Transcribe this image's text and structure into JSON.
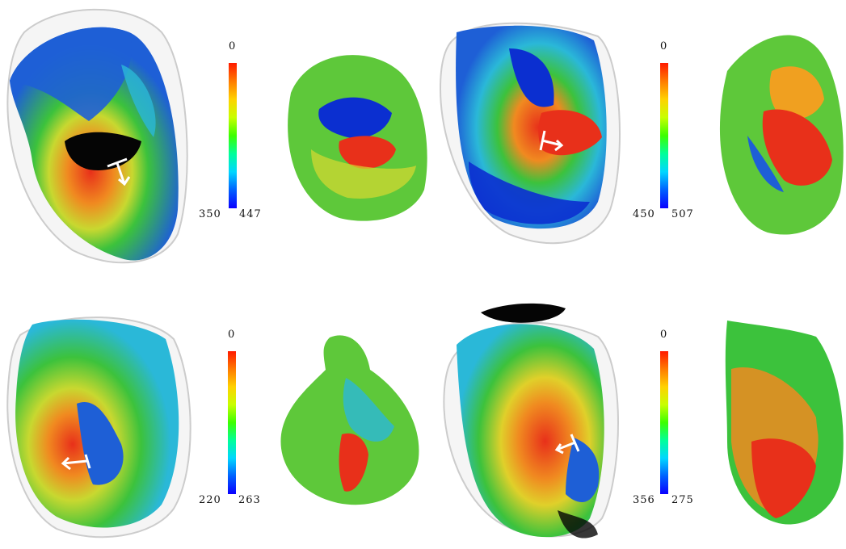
{
  "colormap": {
    "stops": [
      "#0a00ff",
      "#0060ff",
      "#00d6ff",
      "#00ff9a",
      "#3cff00",
      "#c8ff00",
      "#ffd200",
      "#ff7a00",
      "#ff1a00"
    ],
    "colors": {
      "blue": "#1e5fd6",
      "deep_blue": "#0b2fd0",
      "cyan": "#2ab8d8",
      "green": "#3cc23c",
      "yellow": "#e0d02a",
      "orange": "#f08a20",
      "red": "#e8301a",
      "black": "#050505",
      "shell": "#d8d8d8"
    }
  },
  "panels": [
    {
      "id": "top-left",
      "colorbar": {
        "top_label": "0",
        "bottom_left": "350",
        "bottom_right": "447"
      }
    },
    {
      "id": "top-right",
      "colorbar": {
        "top_label": "0",
        "bottom_left": "450",
        "bottom_right": "507"
      }
    },
    {
      "id": "bottom-left",
      "colorbar": {
        "top_label": "0",
        "bottom_left": "220",
        "bottom_right": "263"
      }
    },
    {
      "id": "bottom-right",
      "colorbar": {
        "top_label": "0",
        "bottom_left": "356",
        "bottom_right": "275"
      }
    }
  ]
}
